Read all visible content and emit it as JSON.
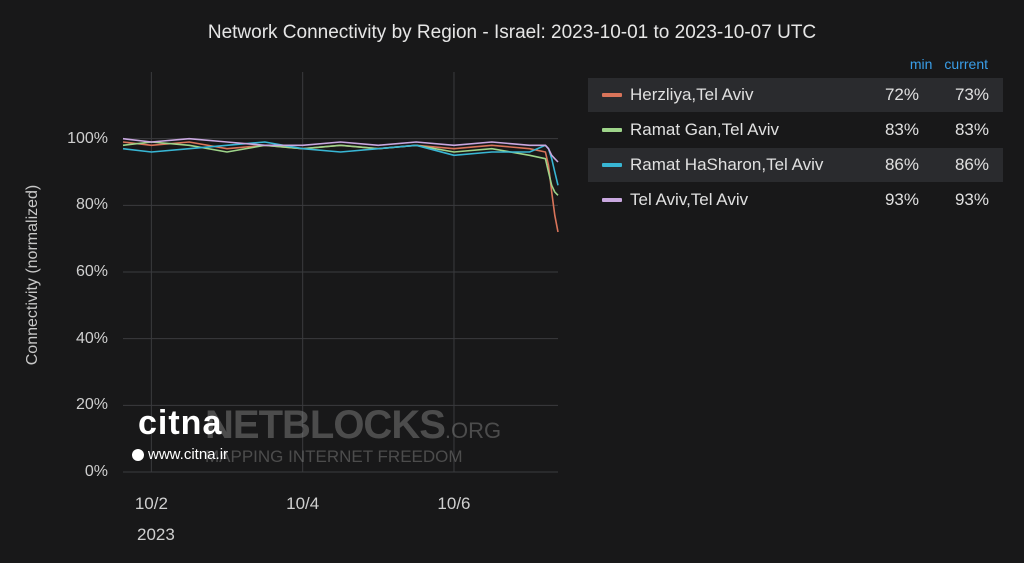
{
  "chart_data": {
    "type": "line",
    "title": "Network Connectivity by Region - Israel: 2023-10-01 to 2023-10-07 UTC",
    "ylabel": "Connectivity (normalized)",
    "xlabel": "",
    "x_start": "2023-10-01T15:00",
    "x_end": "2023-10-07T09:00",
    "ylim": [
      0,
      120
    ],
    "yticks": [
      "100%",
      "80%",
      "60%",
      "40%",
      "20%",
      "0%"
    ],
    "xticks": [
      "10/2",
      "10/4",
      "10/6"
    ],
    "x_year_label": "2023",
    "grid": true,
    "legend_position": "right",
    "legend_header": {
      "min": "min",
      "current": "current"
    },
    "series": [
      {
        "name": "Herzliya,Tel Aviv",
        "color": "#d9745a",
        "min": "72%",
        "current": "73%",
        "points": [
          [
            "2023-10-01T15:00",
            99
          ],
          [
            "2023-10-02T00:00",
            98
          ],
          [
            "2023-10-02T12:00",
            99
          ],
          [
            "2023-10-03T00:00",
            97
          ],
          [
            "2023-10-03T12:00",
            98
          ],
          [
            "2023-10-04T00:00",
            97
          ],
          [
            "2023-10-04T12:00",
            98
          ],
          [
            "2023-10-05T00:00",
            97
          ],
          [
            "2023-10-05T12:00",
            98
          ],
          [
            "2023-10-06T00:00",
            97
          ],
          [
            "2023-10-06T12:00",
            98
          ],
          [
            "2023-10-07T00:00",
            97
          ],
          [
            "2023-10-07T05:00",
            96
          ],
          [
            "2023-10-07T06:00",
            92
          ],
          [
            "2023-10-07T07:00",
            84
          ],
          [
            "2023-10-07T08:00",
            77
          ],
          [
            "2023-10-07T09:00",
            72
          ]
        ]
      },
      {
        "name": "Ramat Gan,Tel Aviv",
        "color": "#9ed48a",
        "min": "83%",
        "current": "83%",
        "points": [
          [
            "2023-10-01T15:00",
            98
          ],
          [
            "2023-10-02T00:00",
            99
          ],
          [
            "2023-10-02T12:00",
            98
          ],
          [
            "2023-10-03T00:00",
            96
          ],
          [
            "2023-10-03T12:00",
            98
          ],
          [
            "2023-10-04T00:00",
            97
          ],
          [
            "2023-10-04T12:00",
            98
          ],
          [
            "2023-10-05T00:00",
            97
          ],
          [
            "2023-10-05T12:00",
            98
          ],
          [
            "2023-10-06T00:00",
            96
          ],
          [
            "2023-10-06T12:00",
            97
          ],
          [
            "2023-10-07T00:00",
            95
          ],
          [
            "2023-10-07T05:00",
            94
          ],
          [
            "2023-10-07T06:00",
            90
          ],
          [
            "2023-10-07T07:00",
            86
          ],
          [
            "2023-10-07T08:00",
            84
          ],
          [
            "2023-10-07T09:00",
            83
          ]
        ]
      },
      {
        "name": "Ramat HaSharon,Tel Aviv",
        "color": "#38b6d4",
        "min": "86%",
        "current": "86%",
        "points": [
          [
            "2023-10-01T15:00",
            97
          ],
          [
            "2023-10-02T00:00",
            96
          ],
          [
            "2023-10-02T12:00",
            97
          ],
          [
            "2023-10-03T00:00",
            98
          ],
          [
            "2023-10-03T12:00",
            99
          ],
          [
            "2023-10-04T00:00",
            97
          ],
          [
            "2023-10-04T12:00",
            96
          ],
          [
            "2023-10-05T00:00",
            97
          ],
          [
            "2023-10-05T12:00",
            98
          ],
          [
            "2023-10-06T00:00",
            95
          ],
          [
            "2023-10-06T12:00",
            96
          ],
          [
            "2023-10-07T00:00",
            96
          ],
          [
            "2023-10-07T05:00",
            98
          ],
          [
            "2023-10-07T06:00",
            97
          ],
          [
            "2023-10-07T07:00",
            94
          ],
          [
            "2023-10-07T08:00",
            90
          ],
          [
            "2023-10-07T09:00",
            86
          ]
        ]
      },
      {
        "name": "Tel Aviv,Tel Aviv",
        "color": "#c9a8e0",
        "min": "93%",
        "current": "93%",
        "points": [
          [
            "2023-10-01T15:00",
            100
          ],
          [
            "2023-10-02T00:00",
            99
          ],
          [
            "2023-10-02T12:00",
            100
          ],
          [
            "2023-10-03T00:00",
            99
          ],
          [
            "2023-10-03T12:00",
            98
          ],
          [
            "2023-10-04T00:00",
            98
          ],
          [
            "2023-10-04T12:00",
            99
          ],
          [
            "2023-10-05T00:00",
            98
          ],
          [
            "2023-10-05T12:00",
            99
          ],
          [
            "2023-10-06T00:00",
            98
          ],
          [
            "2023-10-06T12:00",
            99
          ],
          [
            "2023-10-07T00:00",
            98
          ],
          [
            "2023-10-07T05:00",
            98
          ],
          [
            "2023-10-07T06:00",
            97
          ],
          [
            "2023-10-07T07:00",
            95
          ],
          [
            "2023-10-07T08:00",
            94
          ],
          [
            "2023-10-07T09:00",
            93
          ]
        ]
      }
    ]
  },
  "watermark": {
    "brand": "NETBLOCKS",
    "brand_suffix": ".ORG",
    "tagline": "MAPPING INTERNET FREEDOM",
    "overlay_logo": "citna",
    "overlay_url": "www.citna.ir"
  }
}
